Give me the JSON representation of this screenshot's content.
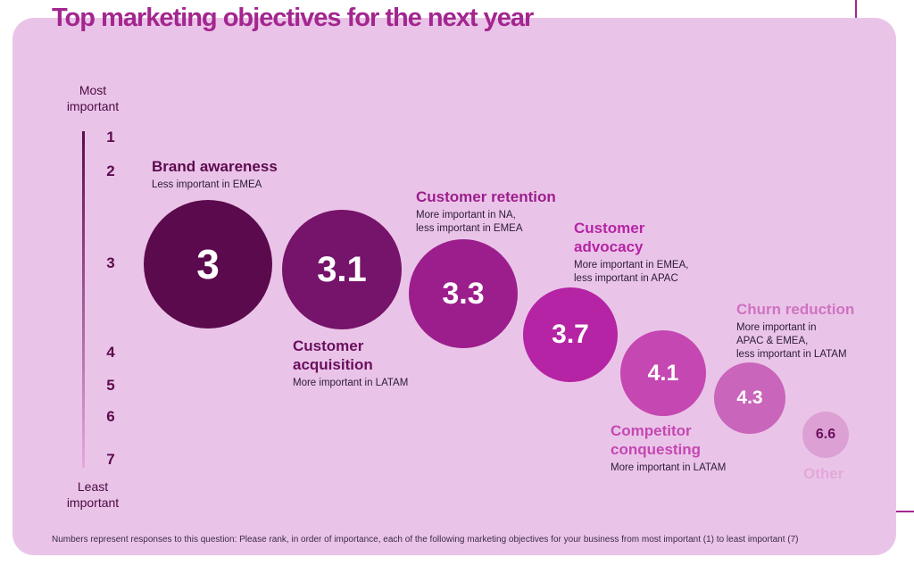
{
  "chart_data": {
    "type": "bubble",
    "title": "Top marketing objectives for the next year",
    "ylabel_top": "Most important",
    "ylabel_bottom": "Least important",
    "ticks": [
      "1",
      "2",
      "3",
      "4",
      "5",
      "6",
      "7"
    ],
    "ylim": [
      1,
      7
    ],
    "series": [
      {
        "name": "Brand awareness",
        "value": 3,
        "label": "3",
        "note": "Less important in EMEA",
        "color": "#5c0a4e",
        "title_color": "#5c0a4e"
      },
      {
        "name": "Customer acquisition",
        "value": 3.1,
        "label": "3.1",
        "note": "More important in LATAM",
        "color": "#76136a",
        "title_color": "#6a0f5e"
      },
      {
        "name": "Customer retention",
        "value": 3.3,
        "label": "3.3",
        "note": "More important in NA,\nless important in EMEA",
        "color": "#9c1e8c",
        "title_color": "#9c1e8c"
      },
      {
        "name": "Customer advocacy",
        "value": 3.7,
        "label": "3.7",
        "note": "More important in EMEA,\nless important in APAC",
        "color": "#b524a4",
        "title_color": "#b524a4"
      },
      {
        "name": "Competitor conquesting",
        "value": 4.1,
        "label": "4.1",
        "note": "More important in LATAM",
        "color": "#c547b2",
        "title_color": "#c547b2"
      },
      {
        "name": "Churn reduction",
        "value": 4.3,
        "label": "4.3",
        "note": "More important in\nAPAC & EMEA,\nless important in LATAM",
        "color": "#c965ba",
        "title_color": "#cf72c2"
      },
      {
        "name": "Other",
        "value": 6.6,
        "label": "6.6",
        "note": "",
        "color": "#dda0d5",
        "title_color": "#e2a8da"
      }
    ]
  },
  "footnote": "Numbers represent responses to this question: Please rank, in order of importance, each of the following marketing objectives for your business from most important (1) to least important (7)"
}
